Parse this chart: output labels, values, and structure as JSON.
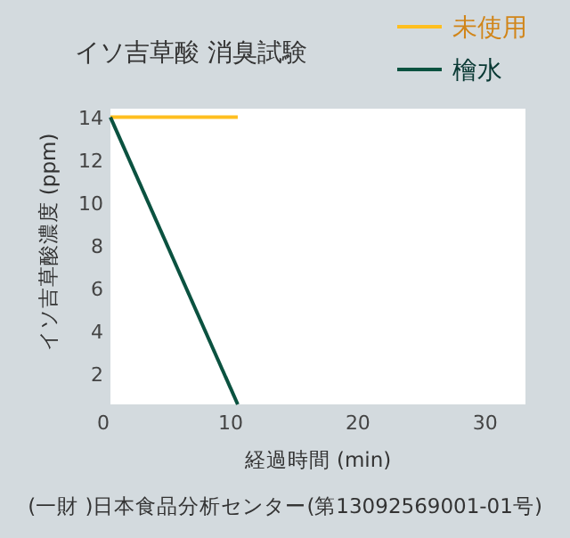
{
  "chart_data": {
    "type": "line",
    "title": "イソ吉草酸 消臭試験",
    "xlabel": "経過時間 (min)",
    "ylabel": "イソ吉草酸濃度 (ppm)",
    "annotations": [
      "(一財 )日本食品分析センター(第13092569001-01号)"
    ],
    "series": [
      {
        "name": "未使用",
        "color": "#ffbf1f",
        "values": [
          14,
          14
        ]
      },
      {
        "name": "檜水",
        "color": "#0b5240",
        "values": [
          14,
          0.6
        ]
      }
    ],
    "x": [
      0,
      10
    ],
    "xlim": [
      0,
      32.6
    ],
    "ylim": [
      0.6,
      14.4
    ],
    "xticks": [
      0,
      10,
      20,
      30
    ],
    "yticks": [
      2,
      4,
      6,
      8,
      10,
      12,
      14
    ],
    "grid": false,
    "legend": "top right",
    "marker": "none",
    "line_style": "solid"
  }
}
